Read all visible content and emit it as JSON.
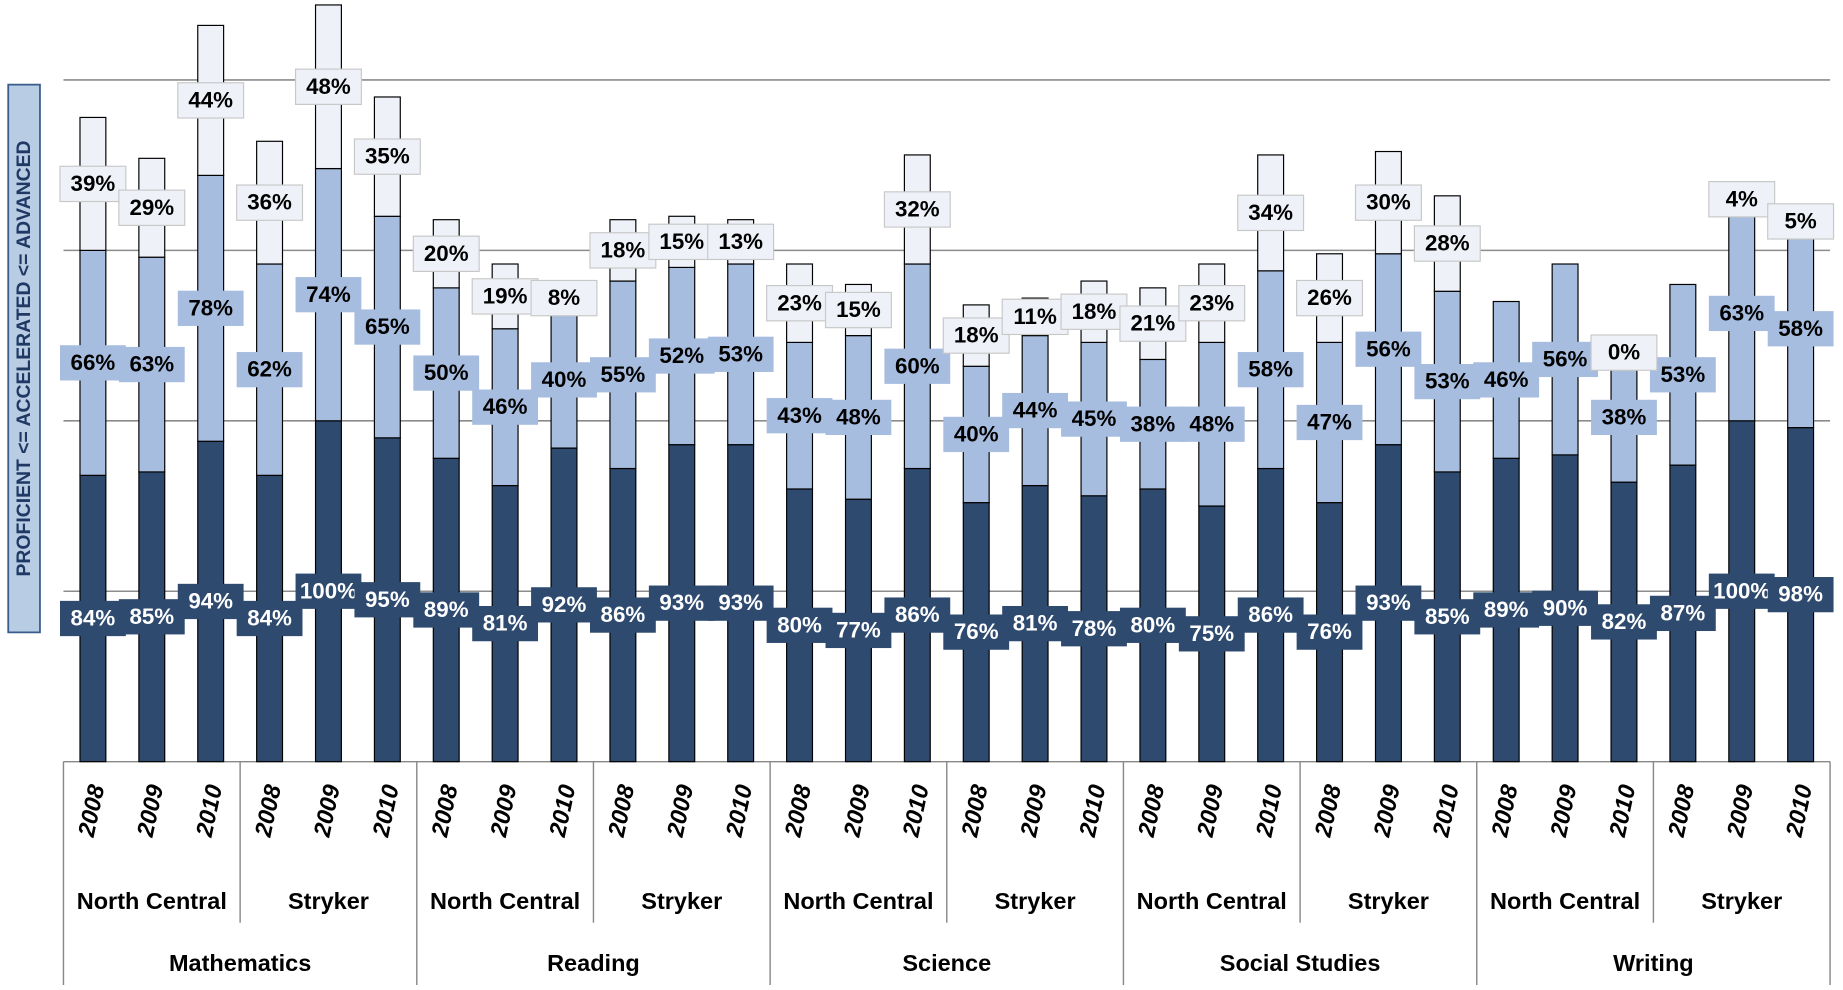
{
  "chart_data": {
    "type": "stacked_bar",
    "y_label": "PROFICIENT <= ACCELERATED <= ADVANCED",
    "categories": [
      "2008",
      "2009",
      "2010",
      "2008",
      "2009",
      "2010",
      "2008",
      "2009",
      "2010",
      "2008",
      "2009",
      "2010",
      "2008",
      "2009",
      "2010",
      "2008",
      "2009",
      "2010",
      "2008",
      "2009",
      "2010",
      "2008",
      "2009",
      "2010",
      "2008",
      "2009",
      "2010",
      "2008",
      "2009",
      "2010"
    ],
    "school_labels": [
      "North Central",
      "Stryker",
      "North Central",
      "Stryker",
      "North Central",
      "Stryker",
      "North Central",
      "Stryker",
      "North Central",
      "Stryker"
    ],
    "subject_labels": [
      "Mathematics",
      "Reading",
      "Science",
      "Social Studies",
      "Writing"
    ],
    "ylim": [
      0,
      225
    ],
    "yticks": [
      50,
      100,
      150,
      200
    ],
    "grid": true,
    "series": [
      {
        "color": "#2e4a6f",
        "label_color": "#ffffff",
        "values": [
          84,
          85,
          94,
          84,
          100,
          95,
          89,
          81,
          92,
          86,
          93,
          93,
          80,
          77,
          86,
          76,
          81,
          78,
          80,
          75,
          86,
          76,
          93,
          85,
          89,
          90,
          82,
          87,
          100,
          98
        ],
        "value_labels": [
          "84%",
          "85%",
          "94%",
          "84%",
          "100%",
          "95%",
          "89%",
          "81%",
          "92%",
          "86%",
          "93%",
          "93%",
          "80%",
          "77%",
          "86%",
          "76%",
          "81%",
          "78%",
          "80%",
          "75%",
          "86%",
          "76%",
          "93%",
          "85%",
          "89%",
          "90%",
          "82%",
          "87%",
          "100%",
          "98%"
        ]
      },
      {
        "color": "#a6bddf",
        "label_color": "#000000",
        "values": [
          66,
          63,
          78,
          62,
          74,
          65,
          50,
          46,
          40,
          55,
          52,
          53,
          43,
          48,
          60,
          40,
          44,
          45,
          38,
          48,
          58,
          47,
          56,
          53,
          46,
          56,
          38,
          53,
          63,
          58
        ],
        "value_labels": [
          "66%",
          "63%",
          "78%",
          "62%",
          "74%",
          "65%",
          "50%",
          "46%",
          "40%",
          "55%",
          "52%",
          "53%",
          "43%",
          "48%",
          "60%",
          "40%",
          "44%",
          "45%",
          "38%",
          "48%",
          "58%",
          "47%",
          "56%",
          "53%",
          "46%",
          "56%",
          "38%",
          "53%",
          "63%",
          "58%"
        ]
      },
      {
        "color": "#eef2f8",
        "label_color": "#000000",
        "values": [
          39,
          29,
          44,
          36,
          48,
          35,
          20,
          19,
          8,
          18,
          15,
          13,
          23,
          15,
          32,
          18,
          11,
          18,
          21,
          23,
          34,
          26,
          30,
          28,
          null,
          null,
          0,
          null,
          4,
          5
        ],
        "value_labels": [
          "39%",
          "29%",
          "44%",
          "36%",
          "48%",
          "35%",
          "20%",
          "19%",
          "8%",
          "18%",
          "15%",
          "13%",
          "23%",
          "15%",
          "32%",
          "18%",
          "11%",
          "18%",
          "21%",
          "23%",
          "34%",
          "26%",
          "30%",
          "28%",
          null,
          null,
          "0%",
          null,
          "4%",
          "5%"
        ]
      }
    ]
  }
}
